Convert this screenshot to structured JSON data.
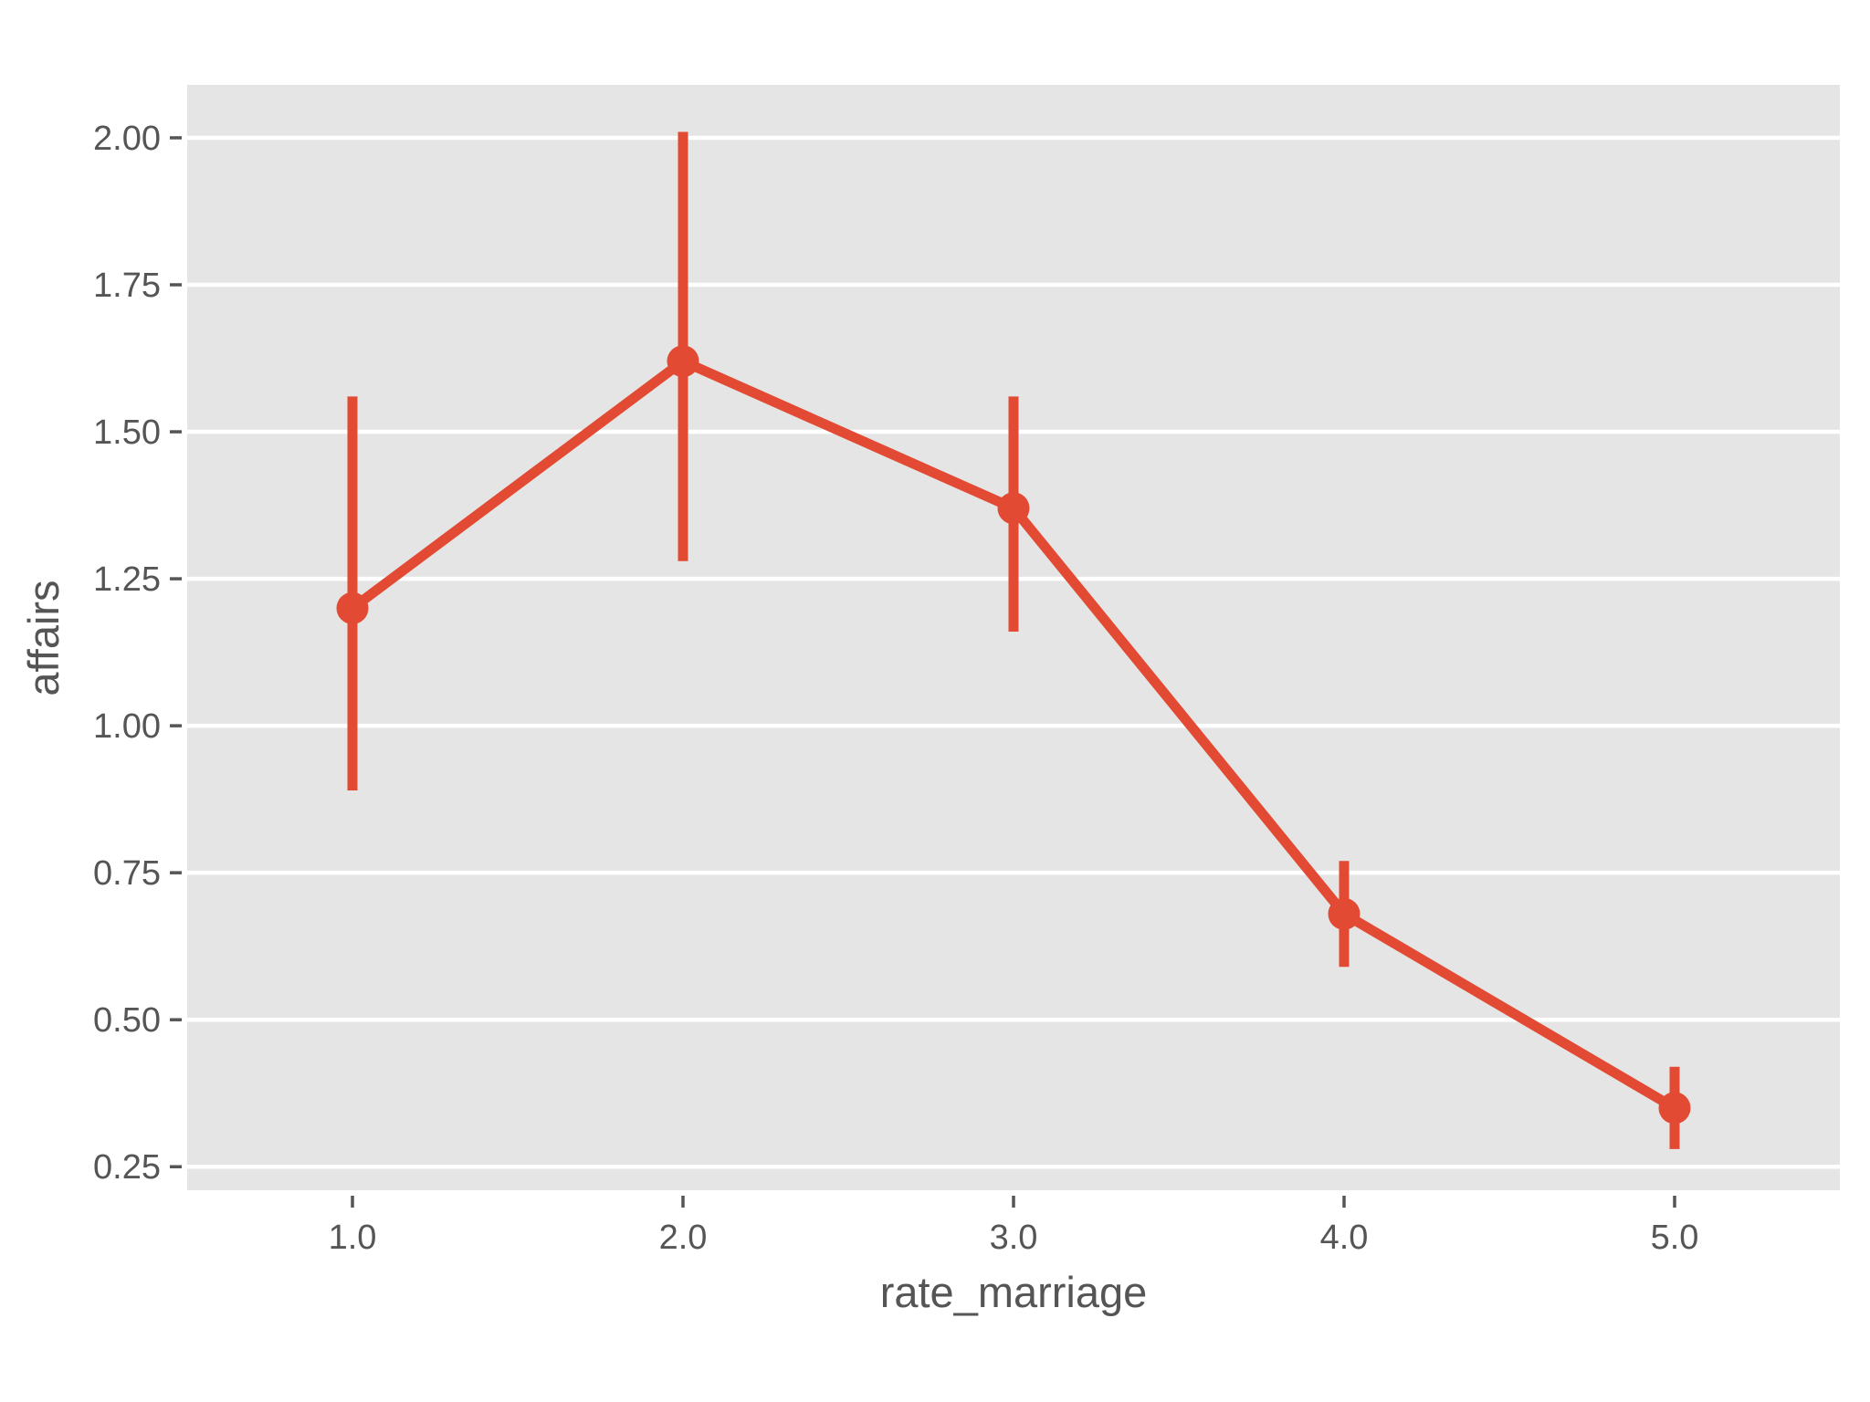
{
  "figure": {
    "background_color": "#FFFFFF"
  },
  "chart_data": {
    "type": "line",
    "variant": "pointplot_with_error_bars",
    "title": "",
    "xlabel": "rate_marriage",
    "ylabel": "affairs",
    "categories": [
      "1.0",
      "2.0",
      "3.0",
      "4.0",
      "5.0"
    ],
    "series": [
      {
        "name": "affairs",
        "values": [
          1.2,
          1.62,
          1.37,
          0.68,
          0.35
        ],
        "ci_low": [
          0.89,
          1.28,
          1.16,
          0.59,
          0.28
        ],
        "ci_high": [
          1.56,
          2.01,
          1.56,
          0.77,
          0.42
        ]
      }
    ],
    "ylim": [
      0.21,
      2.09
    ],
    "yticks": [
      0.25,
      0.5,
      0.75,
      1.0,
      1.25,
      1.5,
      1.75,
      2.0
    ],
    "ytick_labels": [
      "0.25",
      "0.50",
      "0.75",
      "1.00",
      "1.25",
      "1.50",
      "1.75",
      "2.00"
    ],
    "grid": "horizontal",
    "legend_position": "none",
    "colors": {
      "series": "#E24A33",
      "plot_background": "#E5E5E5",
      "gridline": "#FFFFFF",
      "text": "#555555"
    }
  }
}
